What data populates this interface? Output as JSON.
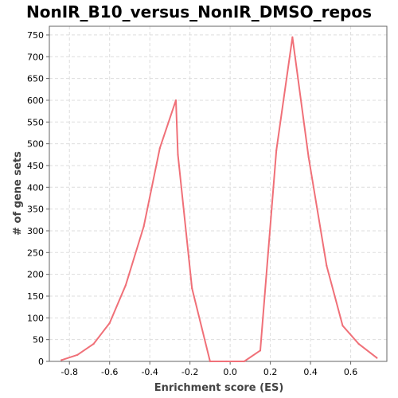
{
  "chart_data": {
    "type": "line",
    "title": "NonIR_B10_versus_NonIR_DMSO_repos",
    "xlabel": "Enrichment score (ES)",
    "ylabel": "# of gene sets",
    "xlim": [
      -0.9,
      0.78
    ],
    "ylim": [
      0,
      770
    ],
    "x_ticks": [
      -0.8,
      -0.6,
      -0.4,
      -0.2,
      0.0,
      0.2,
      0.4,
      0.6
    ],
    "x_tick_labels": [
      "-0.8",
      "-0.6",
      "-0.4",
      "-0.2",
      "0.0",
      "0.2",
      "0.4",
      "0.6"
    ],
    "y_ticks": [
      0,
      50,
      100,
      150,
      200,
      250,
      300,
      350,
      400,
      450,
      500,
      550,
      600,
      650,
      700,
      750
    ],
    "y_tick_labels": [
      "0",
      "50",
      "100",
      "150",
      "200",
      "250",
      "300",
      "350",
      "400",
      "450",
      "500",
      "550",
      "600",
      "650",
      "700",
      "750"
    ],
    "grid": true,
    "legend": "none",
    "series": [
      {
        "color": "#f07078",
        "points": [
          {
            "x": -0.84,
            "y": 3
          },
          {
            "x": -0.76,
            "y": 15
          },
          {
            "x": -0.68,
            "y": 40
          },
          {
            "x": -0.6,
            "y": 88
          },
          {
            "x": -0.52,
            "y": 175
          },
          {
            "x": -0.43,
            "y": 310
          },
          {
            "x": -0.35,
            "y": 490
          },
          {
            "x": -0.27,
            "y": 600
          },
          {
            "x": -0.26,
            "y": 475
          },
          {
            "x": -0.19,
            "y": 168
          },
          {
            "x": -0.1,
            "y": 0
          },
          {
            "x": -0.02,
            "y": 0
          },
          {
            "x": 0.07,
            "y": 0
          },
          {
            "x": 0.15,
            "y": 25
          },
          {
            "x": 0.23,
            "y": 485
          },
          {
            "x": 0.31,
            "y": 745
          },
          {
            "x": 0.39,
            "y": 470
          },
          {
            "x": 0.48,
            "y": 220
          },
          {
            "x": 0.56,
            "y": 82
          },
          {
            "x": 0.64,
            "y": 40
          },
          {
            "x": 0.73,
            "y": 8
          }
        ]
      }
    ]
  }
}
